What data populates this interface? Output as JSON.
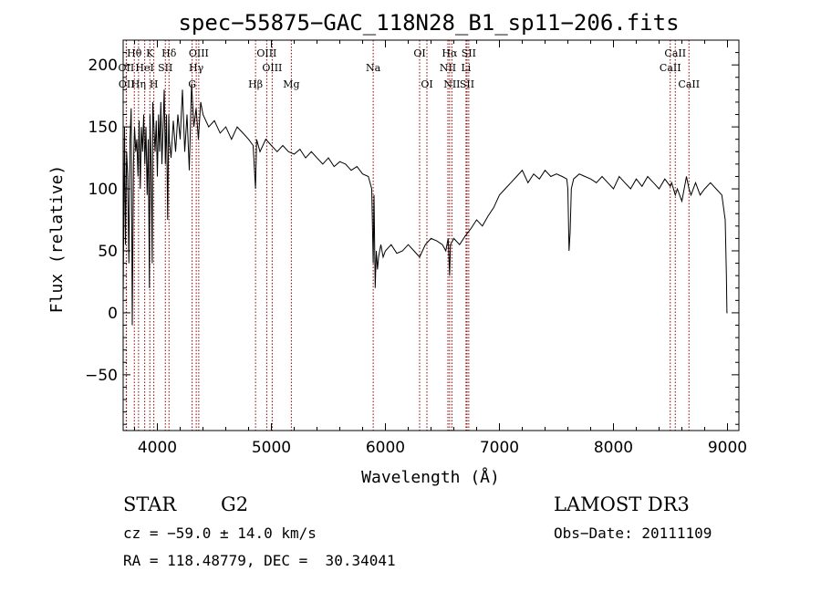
{
  "chart_data": {
    "type": "line",
    "title": "spec−55875−GAC_118N28_B1_sp11−206.fits",
    "xlabel": "Wavelength (Å)",
    "ylabel": "Flux (relative)",
    "xlim": [
      3700,
      9100
    ],
    "ylim": [
      -95,
      220
    ],
    "xticks": [
      4000,
      5000,
      6000,
      7000,
      8000,
      9000
    ],
    "yticks": [
      -50,
      0,
      50,
      100,
      150,
      200
    ],
    "xtick_labels": [
      "4000",
      "5000",
      "6000",
      "7000",
      "8000",
      "9000"
    ],
    "ytick_labels": [
      "−50",
      "0",
      "50",
      "100",
      "150",
      "200"
    ],
    "grid": false,
    "series": [
      {
        "name": "flux",
        "x": [
          3700,
          3712,
          3720,
          3730,
          3740,
          3750,
          3760,
          3770,
          3780,
          3790,
          3800,
          3810,
          3820,
          3830,
          3840,
          3850,
          3860,
          3870,
          3880,
          3890,
          3900,
          3910,
          3920,
          3930,
          3935,
          3945,
          3955,
          3960,
          3970,
          3980,
          3990,
          4000,
          4010,
          4020,
          4030,
          4040,
          4050,
          4060,
          4070,
          4080,
          4090,
          4100,
          4105,
          4120,
          4140,
          4160,
          4180,
          4200,
          4220,
          4240,
          4260,
          4280,
          4300,
          4320,
          4340,
          4360,
          4380,
          4400,
          4450,
          4500,
          4550,
          4600,
          4650,
          4700,
          4750,
          4800,
          4840,
          4861,
          4870,
          4900,
          4950,
          5000,
          5050,
          5100,
          5150,
          5200,
          5250,
          5300,
          5350,
          5400,
          5450,
          5500,
          5550,
          5600,
          5650,
          5700,
          5750,
          5800,
          5850,
          5880,
          5893,
          5900,
          5910,
          5920,
          5930,
          5940,
          5960,
          5980,
          6000,
          6050,
          6100,
          6150,
          6200,
          6250,
          6300,
          6350,
          6400,
          6450,
          6500,
          6530,
          6550,
          6563,
          6570,
          6600,
          6650,
          6700,
          6750,
          6800,
          6850,
          6900,
          6950,
          7000,
          7050,
          7100,
          7150,
          7200,
          7250,
          7300,
          7350,
          7400,
          7450,
          7500,
          7550,
          7590,
          7600,
          7610,
          7620,
          7630,
          7650,
          7700,
          7750,
          7800,
          7850,
          7900,
          7950,
          8000,
          8050,
          8100,
          8150,
          8200,
          8250,
          8300,
          8350,
          8400,
          8450,
          8498,
          8510,
          8542,
          8560,
          8600,
          8640,
          8662,
          8680,
          8720,
          8760,
          8800,
          8850,
          8900,
          8950,
          8980,
          8990,
          8995,
          9000
        ],
        "y": [
          10,
          150,
          55,
          130,
          110,
          40,
          140,
          165,
          -10,
          120,
          150,
          130,
          140,
          110,
          155,
          100,
          150,
          130,
          160,
          120,
          150,
          95,
          140,
          20,
          160,
          120,
          40,
          170,
          150,
          130,
          155,
          110,
          160,
          130,
          170,
          120,
          150,
          180,
          120,
          160,
          75,
          160,
          140,
          125,
          155,
          130,
          160,
          140,
          180,
          130,
          160,
          115,
          185,
          150,
          165,
          140,
          170,
          160,
          150,
          155,
          145,
          150,
          140,
          150,
          145,
          140,
          135,
          100,
          140,
          130,
          140,
          135,
          130,
          135,
          130,
          128,
          132,
          125,
          130,
          125,
          120,
          125,
          118,
          122,
          120,
          115,
          118,
          112,
          110,
          100,
          40,
          95,
          20,
          50,
          35,
          45,
          55,
          45,
          50,
          55,
          48,
          50,
          55,
          50,
          45,
          55,
          60,
          58,
          55,
          50,
          60,
          30,
          55,
          60,
          55,
          62,
          68,
          75,
          70,
          78,
          85,
          95,
          100,
          105,
          110,
          115,
          105,
          112,
          108,
          115,
          110,
          112,
          110,
          108,
          100,
          50,
          65,
          100,
          108,
          112,
          110,
          108,
          105,
          110,
          105,
          100,
          110,
          105,
          100,
          108,
          102,
          110,
          105,
          100,
          108,
          102,
          105,
          95,
          100,
          90,
          110,
          100,
          95,
          105,
          95,
          100,
          105,
          100,
          95,
          75,
          30,
          0,
          0
        ]
      }
    ],
    "line_labels": [
      {
        "label": "Hθ",
        "wavelength": 3798,
        "row": 1,
        "line_wavelength": 3798
      },
      {
        "label": "OII",
        "wavelength": 3727,
        "row": 2,
        "line_wavelength": 3727
      },
      {
        "label": "HeI",
        "wavelength": 3889,
        "row": 2,
        "line_wavelength": 3889
      },
      {
        "label": "SII",
        "wavelength": 4070,
        "row": 2,
        "line_wavelength": 4070
      },
      {
        "label": "K",
        "wavelength": 3934,
        "row": 1,
        "line_wavelength": 3934
      },
      {
        "label": "Hδ",
        "wavelength": 4102,
        "row": 1,
        "line_wavelength": 4102
      },
      {
        "label": "OII",
        "wavelength": 3730,
        "row": 3,
        "line_wavelength": 3729
      },
      {
        "label": "Hη",
        "wavelength": 3835,
        "row": 3,
        "line_wavelength": 3835
      },
      {
        "label": "H",
        "wavelength": 3969,
        "row": 3,
        "line_wavelength": 3969
      },
      {
        "label": "OIII",
        "wavelength": 4363,
        "row": 1,
        "line_wavelength": 4363
      },
      {
        "label": "Hγ",
        "wavelength": 4341,
        "row": 2,
        "line_wavelength": 4341
      },
      {
        "label": "G",
        "wavelength": 4305,
        "row": 3,
        "line_wavelength": 4305
      },
      {
        "label": "OIII",
        "wavelength": 4959,
        "row": 1,
        "line_wavelength": 4959
      },
      {
        "label": "OIII",
        "wavelength": 5007,
        "row": 2,
        "line_wavelength": 5007
      },
      {
        "label": "Hβ",
        "wavelength": 4861,
        "row": 3,
        "line_wavelength": 4861
      },
      {
        "label": "Mg",
        "wavelength": 5175,
        "row": 3,
        "line_wavelength": 5175
      },
      {
        "label": "Na",
        "wavelength": 5893,
        "row": 2,
        "line_wavelength": 5893
      },
      {
        "label": "OI",
        "wavelength": 6300,
        "row": 1,
        "line_wavelength": 6300
      },
      {
        "label": "OI",
        "wavelength": 6364,
        "row": 3,
        "line_wavelength": 6364
      },
      {
        "label": "Hα",
        "wavelength": 6563,
        "row": 1,
        "line_wavelength": 6563
      },
      {
        "label": "SII",
        "wavelength": 6731,
        "row": 1,
        "line_wavelength": 6731
      },
      {
        "label": "NII",
        "wavelength": 6548,
        "row": 2,
        "line_wavelength": 6548
      },
      {
        "label": "Li",
        "wavelength": 6707,
        "row": 2,
        "line_wavelength": 6707
      },
      {
        "label": "NII",
        "wavelength": 6583,
        "row": 3,
        "line_wavelength": 6583
      },
      {
        "label": "SII",
        "wavelength": 6716,
        "row": 3,
        "line_wavelength": 6716
      },
      {
        "label": "CaII",
        "wavelength": 8542,
        "row": 1,
        "line_wavelength": 8542
      },
      {
        "label": "CaII",
        "wavelength": 8498,
        "row": 2,
        "line_wavelength": 8498
      },
      {
        "label": "CaII",
        "wavelength": 8662,
        "row": 3,
        "line_wavelength": 8662
      }
    ],
    "colors": {
      "line": "#000000",
      "marker": "#8b0000",
      "axes": "#000000"
    }
  },
  "info": {
    "object_class": "STAR",
    "subclass": "G2",
    "survey": "LAMOST DR3",
    "cz": "cz = −59.0 ± 14.0 km/s",
    "obs_date": "Obs−Date: 20111109",
    "coords": "RA = 118.48779, DEC =  30.34041"
  }
}
